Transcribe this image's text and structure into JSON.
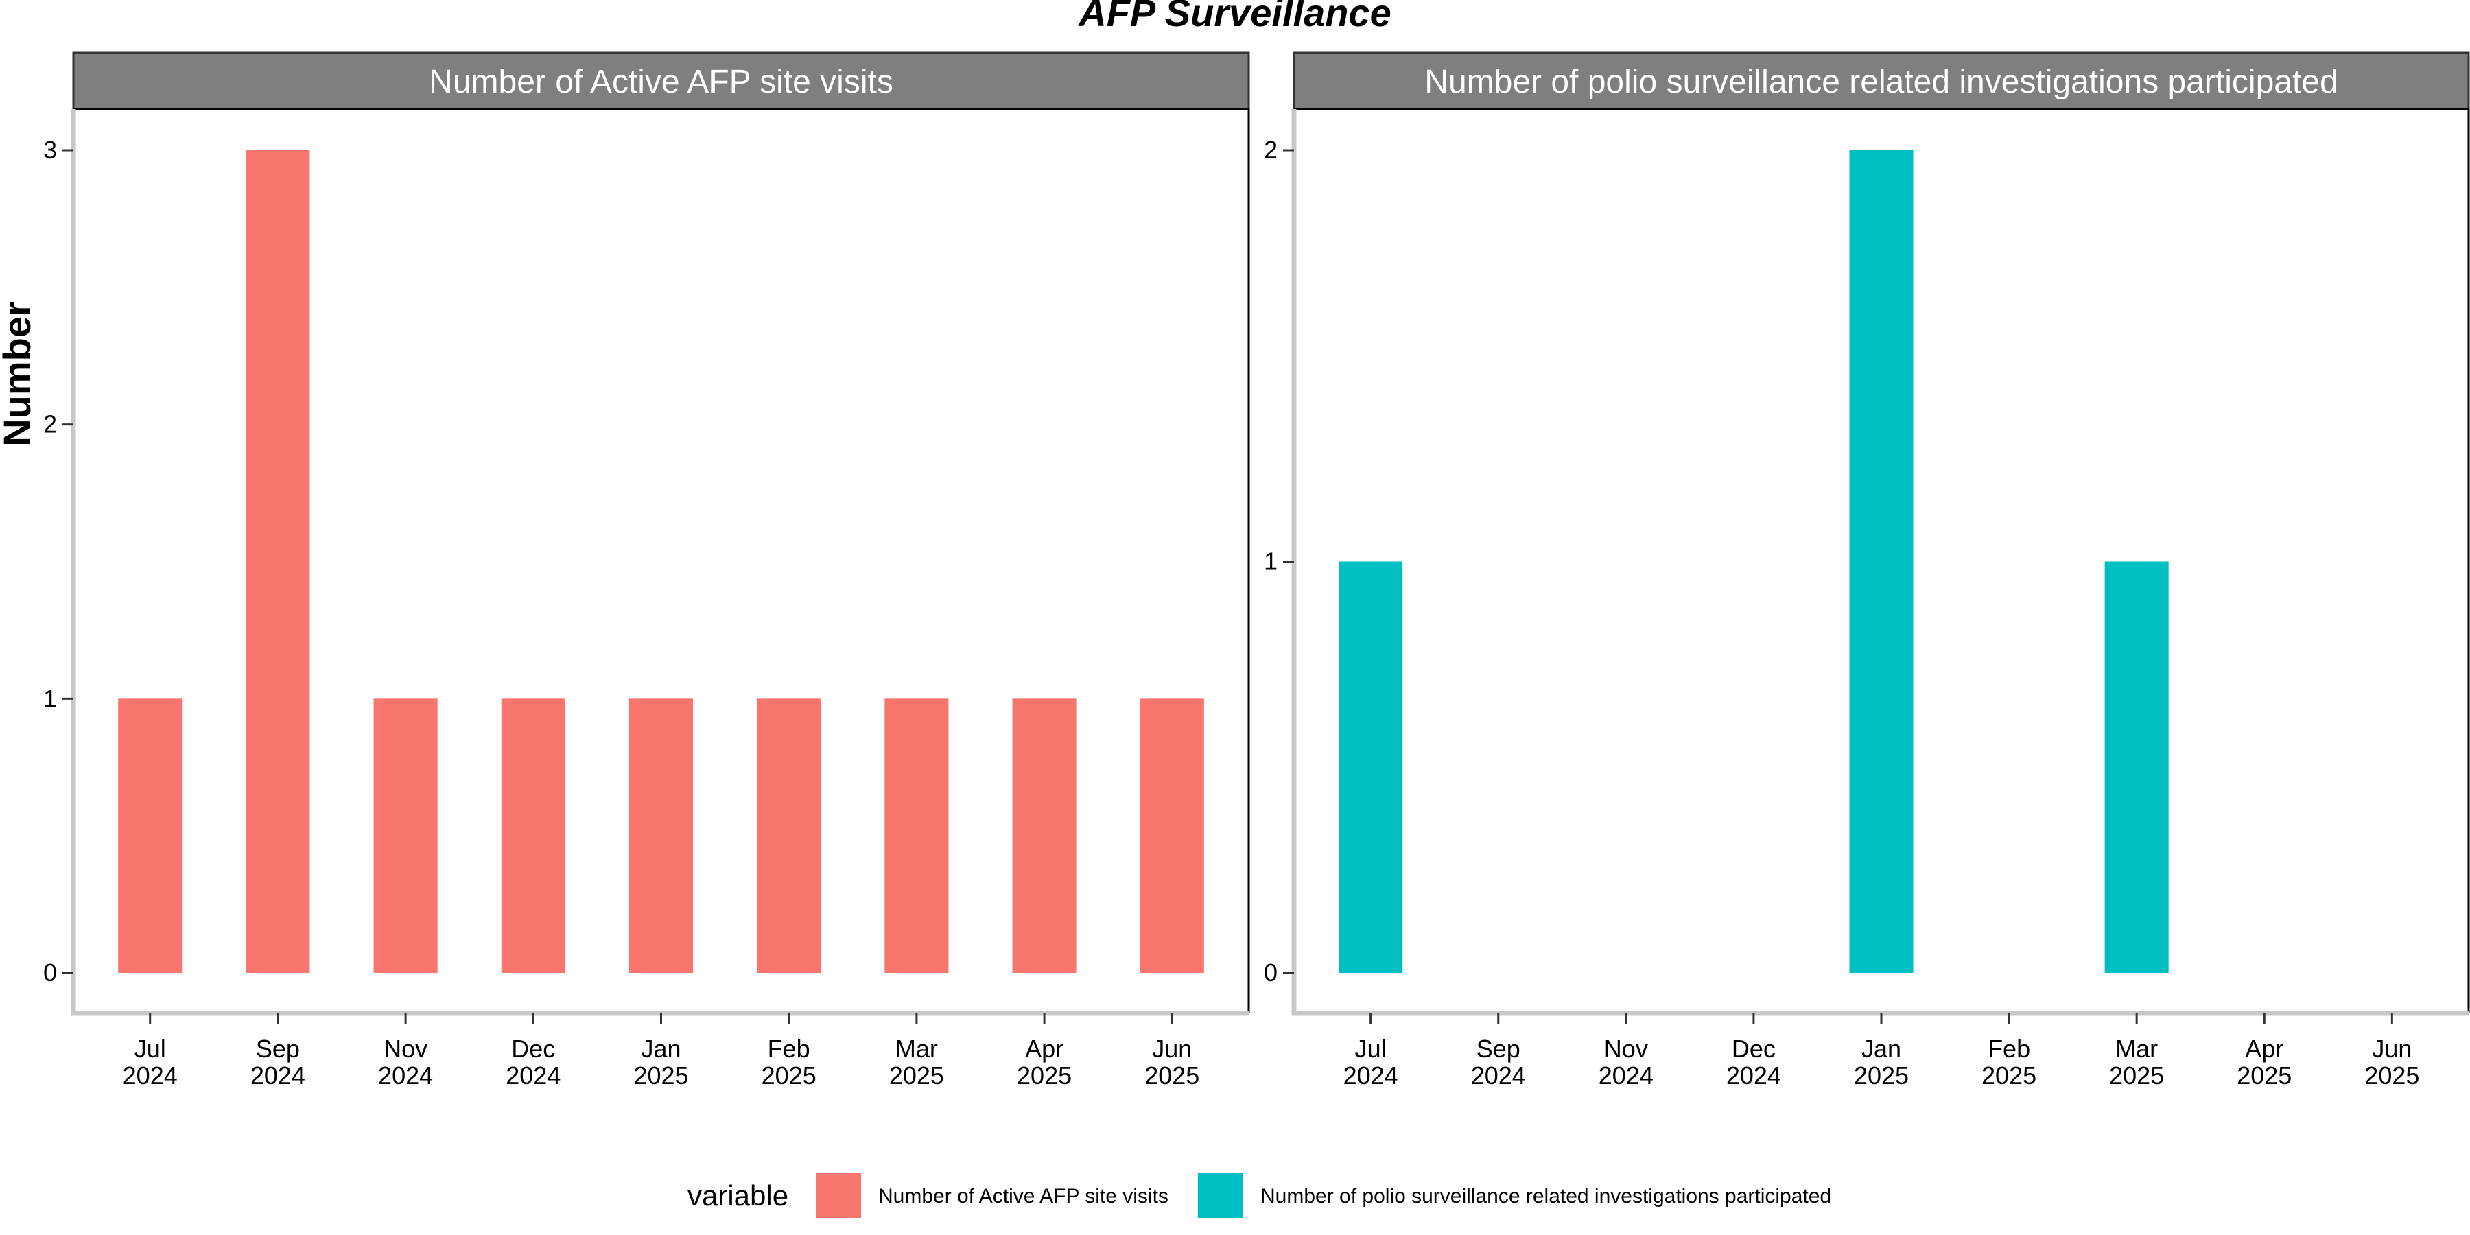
{
  "chart_data": {
    "title": "AFP Surveillance",
    "ylabel": "Number",
    "legend": {
      "title": "variable",
      "position": "bottom",
      "items": [
        {
          "label": "Number of Active AFP site visits",
          "color": "#F8766D"
        },
        {
          "label": "Number of polio surveillance related investigations participated",
          "color": "#00BFC4"
        }
      ]
    },
    "categories": [
      [
        "Jul",
        "2024"
      ],
      [
        "Sep",
        "2024"
      ],
      [
        "Nov",
        "2024"
      ],
      [
        "Dec",
        "2024"
      ],
      [
        "Jan",
        "2025"
      ],
      [
        "Feb",
        "2025"
      ],
      [
        "Mar",
        "2025"
      ],
      [
        "Apr",
        "2025"
      ],
      [
        "Jun",
        "2025"
      ]
    ],
    "panels": [
      {
        "type": "bar",
        "strip": "Number of Active AFP site visits",
        "color": "#F8766D",
        "values": [
          1,
          3,
          1,
          1,
          1,
          1,
          1,
          1,
          1
        ],
        "ylim": [
          0,
          3
        ],
        "yticks": [
          0,
          1,
          2,
          3
        ]
      },
      {
        "type": "bar",
        "strip": "Number of polio surveillance related investigations participated",
        "color": "#00BFC4",
        "values": [
          1,
          0,
          0,
          0,
          2,
          0,
          1,
          0,
          0
        ],
        "ylim": [
          0,
          2
        ],
        "yticks": [
          0,
          1,
          2
        ]
      }
    ],
    "grid": false
  }
}
